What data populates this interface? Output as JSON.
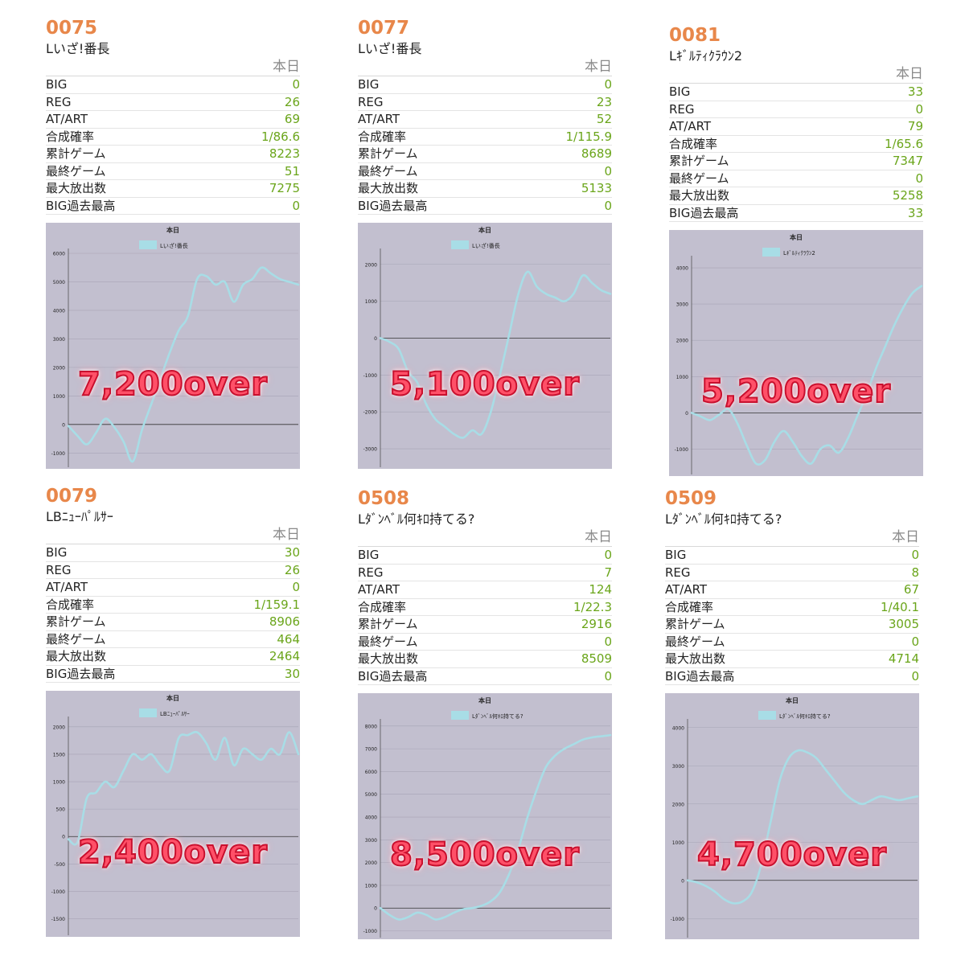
{
  "header_today": "本日",
  "stat_labels": [
    "BIG",
    "REG",
    "AT/ART",
    "合成確率",
    "累計ゲーム",
    "最終ゲーム",
    "最大放出数",
    "BIG過去最高"
  ],
  "colors": {
    "number": "#e8874a",
    "value": "#6aa51a",
    "line": "#a8dde6",
    "chart_bg": "#c2bfcf",
    "overlay": "#ff5068"
  },
  "panels": [
    {
      "id": "0075",
      "machine": "Lいざ!番長",
      "stats": [
        "0",
        "26",
        "69",
        "1/86.6",
        "8223",
        "51",
        "7275",
        "0"
      ],
      "overlay": "7,200over"
    },
    {
      "id": "0077",
      "machine": "Lいざ!番長",
      "stats": [
        "0",
        "23",
        "52",
        "1/115.9",
        "8689",
        "0",
        "5133",
        "0"
      ],
      "overlay": "5,100over"
    },
    {
      "id": "0081",
      "machine": "Lｷﾞﾙﾃｨｸﾗｳﾝ2",
      "stats": [
        "33",
        "0",
        "79",
        "1/65.6",
        "7347",
        "0",
        "5258",
        "33"
      ],
      "overlay": "5,200over"
    },
    {
      "id": "0079",
      "machine": "LBﾆｭｰﾊﾟﾙｻｰ",
      "stats": [
        "30",
        "26",
        "0",
        "1/159.1",
        "8906",
        "464",
        "2464",
        "30"
      ],
      "overlay": "2,400over"
    },
    {
      "id": "0508",
      "machine": "Lﾀﾞﾝﾍﾞﾙ何ｷﾛ持てる?",
      "stats": [
        "0",
        "7",
        "124",
        "1/22.3",
        "2916",
        "0",
        "8509",
        "0"
      ],
      "overlay": "8,500over"
    },
    {
      "id": "0509",
      "machine": "Lﾀﾞﾝﾍﾞﾙ何ｷﾛ持てる?",
      "stats": [
        "0",
        "8",
        "67",
        "1/40.1",
        "3005",
        "0",
        "4714",
        "0"
      ],
      "overlay": "4,700over"
    }
  ],
  "chart_data": [
    {
      "type": "line",
      "title": "本日",
      "legend": "top",
      "series": [
        {
          "name": "Lいざ!番長",
          "x": [
            0,
            4,
            8,
            12,
            16,
            20,
            24,
            28,
            32,
            36,
            40,
            44,
            48,
            52,
            56,
            60,
            64,
            68,
            72,
            76,
            80,
            84,
            88,
            92,
            96,
            100
          ],
          "y": [
            -50,
            -400,
            -700,
            -300,
            200,
            -100,
            -600,
            -1300,
            -200,
            700,
            1600,
            2500,
            3300,
            3800,
            5100,
            5200,
            4900,
            5000,
            4300,
            4900,
            5100,
            5500,
            5300,
            5100,
            5000,
            4900
          ]
        }
      ],
      "ylim": [
        -1500,
        6000
      ],
      "yticks": [
        -1000,
        0,
        1000,
        2000,
        3000,
        4000,
        5000,
        6000
      ]
    },
    {
      "type": "line",
      "title": "本日",
      "legend": "top",
      "series": [
        {
          "name": "Lいざ!番長",
          "x": [
            0,
            4,
            8,
            12,
            16,
            20,
            24,
            28,
            32,
            36,
            40,
            44,
            48,
            52,
            56,
            60,
            64,
            68,
            72,
            76,
            80,
            84,
            88,
            92,
            96,
            100
          ],
          "y": [
            0,
            -100,
            -300,
            -900,
            -1200,
            -1800,
            -2200,
            -2400,
            -2600,
            -2700,
            -2500,
            -2600,
            -2000,
            -1000,
            100,
            1200,
            1800,
            1400,
            1200,
            1100,
            1000,
            1200,
            1700,
            1500,
            1300,
            1200
          ]
        }
      ],
      "ylim": [
        -3500,
        2300
      ],
      "yticks": [
        -3000,
        -2000,
        -1000,
        0,
        1000,
        2000
      ]
    },
    {
      "type": "line",
      "title": "本日",
      "legend": "top",
      "series": [
        {
          "name": "Lｷﾞﾙﾃｨｸﾗｳﾝ2",
          "x": [
            0,
            4,
            8,
            12,
            16,
            20,
            24,
            28,
            32,
            36,
            40,
            44,
            48,
            52,
            56,
            60,
            64,
            68,
            72,
            76,
            80,
            84,
            88,
            92,
            96,
            100
          ],
          "y": [
            0,
            -100,
            -200,
            -50,
            100,
            -300,
            -900,
            -1400,
            -1300,
            -800,
            -500,
            -800,
            -1200,
            -1400,
            -1000,
            -900,
            -1100,
            -700,
            -100,
            500,
            1200,
            1800,
            2400,
            2900,
            3300,
            3500
          ]
        }
      ],
      "ylim": [
        -1700,
        4200
      ],
      "yticks": [
        -1000,
        0,
        1000,
        2000,
        3000,
        4000
      ]
    },
    {
      "type": "line",
      "title": "本日",
      "legend": "top",
      "series": [
        {
          "name": "LBﾆｭｰﾊﾟﾙｻｰ",
          "x": [
            0,
            4,
            8,
            12,
            16,
            20,
            24,
            28,
            32,
            36,
            40,
            44,
            48,
            52,
            56,
            60,
            64,
            68,
            72,
            76,
            80,
            84,
            88,
            92,
            96,
            100
          ],
          "y": [
            -50,
            -100,
            700,
            800,
            1000,
            900,
            1200,
            1500,
            1400,
            1500,
            1300,
            1200,
            1800,
            1850,
            1900,
            1700,
            1400,
            1800,
            1300,
            1600,
            1500,
            1400,
            1600,
            1500,
            1900,
            1500
          ]
        }
      ],
      "ylim": [
        -1800,
        2100
      ],
      "yticks": [
        -1500,
        -1000,
        -500,
        0,
        500,
        1000,
        1500,
        2000
      ]
    },
    {
      "type": "line",
      "title": "本日",
      "legend": "top",
      "series": [
        {
          "name": "Lﾀﾞﾝﾍﾞﾙ何ｷﾛ持てる?",
          "x": [
            0,
            4,
            8,
            12,
            16,
            20,
            24,
            28,
            32,
            36,
            40,
            44,
            48,
            52,
            56,
            60,
            64,
            68,
            72,
            76,
            80,
            84,
            88,
            92,
            96,
            100
          ],
          "y": [
            0,
            -300,
            -500,
            -400,
            -200,
            -300,
            -500,
            -400,
            -200,
            -50,
            0,
            100,
            300,
            700,
            1500,
            2600,
            4000,
            5200,
            6200,
            6700,
            7000,
            7200,
            7400,
            7500,
            7550,
            7600
          ]
        }
      ],
      "ylim": [
        -1300,
        8100
      ],
      "yticks": [
        -1000,
        0,
        1000,
        2000,
        3000,
        4000,
        5000,
        6000,
        7000,
        8000
      ]
    },
    {
      "type": "line",
      "title": "本日",
      "legend": "top",
      "series": [
        {
          "name": "Lﾀﾞﾝﾍﾞﾙ何ｷﾛ持てる?",
          "x": [
            0,
            4,
            8,
            12,
            16,
            20,
            24,
            28,
            32,
            36,
            40,
            44,
            48,
            52,
            56,
            60,
            64,
            68,
            72,
            76,
            80,
            84,
            88,
            92,
            96,
            100
          ],
          "y": [
            0,
            -50,
            -150,
            -300,
            -500,
            -600,
            -550,
            -300,
            400,
            1500,
            2600,
            3200,
            3400,
            3350,
            3200,
            2900,
            2600,
            2300,
            2100,
            2000,
            2100,
            2200,
            2150,
            2100,
            2150,
            2200
          ]
        }
      ],
      "ylim": [
        -1500,
        4100
      ],
      "yticks": [
        -1000,
        0,
        1000,
        2000,
        3000,
        4000
      ]
    }
  ]
}
